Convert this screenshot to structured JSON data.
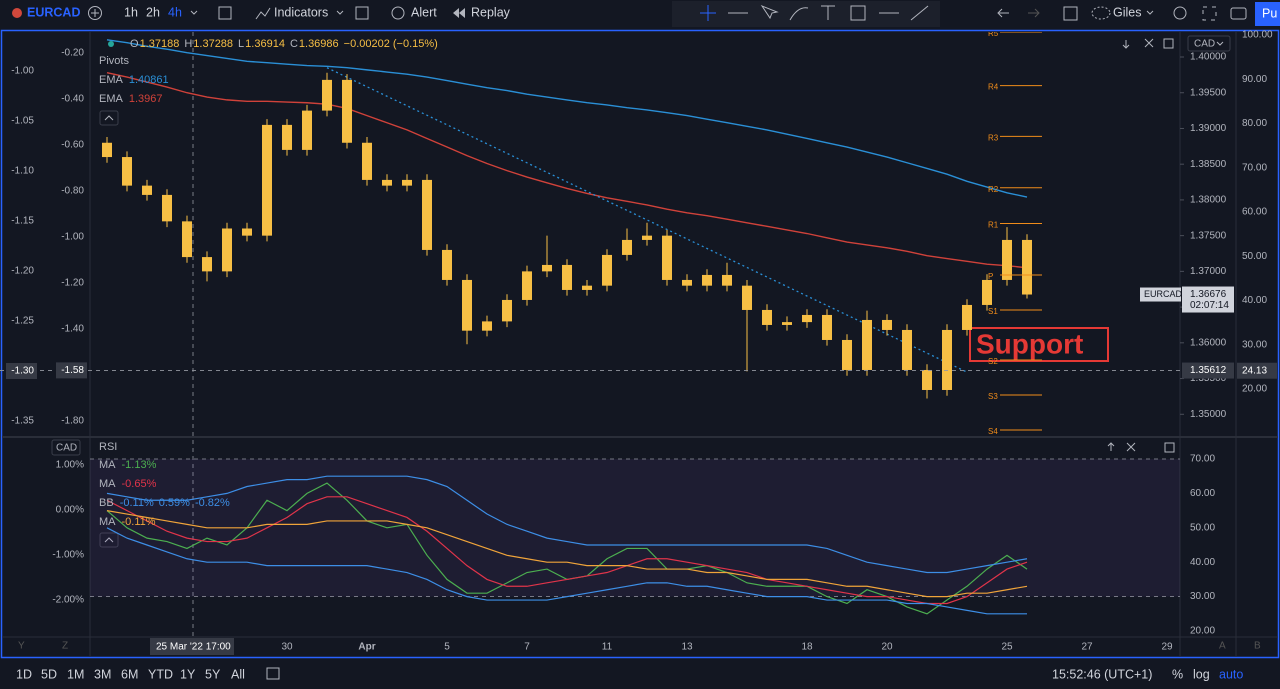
{
  "toolbar": {
    "symbol": "EURCAD",
    "intervals": [
      "1h",
      "2h",
      "4h"
    ],
    "active_interval": 2,
    "buttons": [
      "Indicators",
      "Alert",
      "Replay"
    ],
    "user": "Giles",
    "publish": "Pu"
  },
  "bottom_bar": {
    "ranges": [
      "1D",
      "5D",
      "1M",
      "3M",
      "6M",
      "YTD",
      "1Y",
      "5Y",
      "All"
    ],
    "time": "15:52:46 (UTC+1)",
    "options": [
      "%",
      "log",
      "auto"
    ],
    "corner_left": [
      "Y",
      "Z"
    ],
    "corner_right": [
      "A",
      "B"
    ]
  },
  "chart_data": [
    {
      "type": "candlestick",
      "currency": "CAD",
      "ohlc": [
        {
          "label": "O",
          "value": 1.37188
        },
        {
          "label": "H",
          "value": 1.37288
        },
        {
          "label": "L",
          "value": 1.36914
        },
        {
          "label": "C",
          "value": 1.36986
        }
      ],
      "change": "−0.00202 (−0.15%)",
      "indicator_title": "Pivots",
      "candle_color": "#f7bf45",
      "categories": [
        null,
        null,
        null,
        null,
        null,
        null,
        null,
        null,
        null,
        "30",
        null,
        null,
        null,
        "Apr",
        null,
        null,
        null,
        "5",
        null,
        null,
        null,
        "7",
        null,
        null,
        null,
        "11",
        null,
        null,
        null,
        "13",
        null,
        null,
        null,
        null,
        null,
        "18",
        null,
        null,
        null,
        "20",
        null,
        null,
        null,
        null,
        null,
        "25",
        null,
        null,
        null,
        "27",
        null,
        null,
        null,
        "29"
      ],
      "open": [
        1.388,
        1.386,
        1.382,
        1.3807,
        1.377,
        1.372,
        1.37,
        1.376,
        1.375,
        1.3905,
        1.387,
        1.3925,
        1.3968,
        1.388,
        1.3828,
        1.382,
        1.3828,
        1.373,
        1.3688,
        1.3617,
        1.363,
        1.366,
        1.37,
        1.3709,
        1.3674,
        1.368,
        1.3723,
        1.3744,
        1.375,
        1.3688,
        1.368,
        1.3695,
        1.368,
        1.3646,
        1.3625,
        1.3629,
        1.3639,
        1.3604,
        1.3562,
        1.3632,
        1.3618,
        1.3562,
        1.3534,
        1.3618,
        1.3653,
        1.3688,
        1.3744,
        null,
        null,
        null,
        null,
        null,
        null,
        null
      ],
      "high": [
        1.3888,
        1.3868,
        1.3828,
        1.3815,
        1.3778,
        1.3728,
        1.3768,
        1.3768,
        1.3913,
        1.3913,
        1.3933,
        1.3978,
        1.3976,
        1.3888,
        1.3836,
        1.3836,
        1.3836,
        1.3738,
        1.3696,
        1.3638,
        1.3668,
        1.3708,
        1.375,
        1.3717,
        1.3688,
        1.3731,
        1.376,
        1.3768,
        1.3758,
        1.3696,
        1.3703,
        1.3712,
        1.3688,
        1.3654,
        1.3637,
        1.3647,
        1.3647,
        1.3612,
        1.3645,
        1.364,
        1.3626,
        1.357,
        1.3626,
        1.3661,
        1.3696,
        1.3762,
        1.3752,
        null,
        null,
        null,
        null,
        null,
        null,
        null
      ],
      "low": [
        1.3852,
        1.3812,
        1.3799,
        1.3762,
        1.3712,
        1.3686,
        1.3692,
        1.3742,
        1.3742,
        1.3862,
        1.3862,
        1.3917,
        1.3872,
        1.382,
        1.3812,
        1.3812,
        1.3722,
        1.368,
        1.3598,
        1.3609,
        1.3622,
        1.3652,
        1.3692,
        1.3666,
        1.3666,
        1.3672,
        1.3715,
        1.3736,
        1.368,
        1.3672,
        1.3672,
        1.3672,
        1.356,
        1.3617,
        1.3617,
        1.3621,
        1.3596,
        1.3554,
        1.3554,
        1.361,
        1.3554,
        1.3522,
        1.3526,
        1.361,
        1.3645,
        1.368,
        1.3662,
        null,
        null,
        null,
        null,
        null,
        null,
        null
      ],
      "close": [
        1.386,
        1.382,
        1.3807,
        1.377,
        1.372,
        1.37,
        1.376,
        1.375,
        1.3905,
        1.387,
        1.3925,
        1.3968,
        1.388,
        1.3828,
        1.382,
        1.3828,
        1.373,
        1.3688,
        1.3617,
        1.363,
        1.366,
        1.37,
        1.3709,
        1.3674,
        1.368,
        1.3723,
        1.3744,
        1.375,
        1.3688,
        1.368,
        1.3695,
        1.368,
        1.3646,
        1.3625,
        1.3629,
        1.3639,
        1.3604,
        1.3562,
        1.3632,
        1.3618,
        1.3562,
        1.3534,
        1.3618,
        1.3653,
        1.3688,
        1.3744,
        1.36676,
        null,
        null,
        null,
        null,
        null,
        null,
        null
      ],
      "series": [
        {
          "name": "EMA",
          "color": "#2a8fd6",
          "legend_value": 1.40861,
          "values": [
            1.4024,
            1.402,
            1.4015,
            1.4011,
            1.4006,
            1.4002,
            1.3998,
            1.3994,
            1.3992,
            1.399,
            1.3988,
            1.3987,
            1.3985,
            1.3982,
            1.3979,
            1.3976,
            1.3972,
            1.3967,
            1.3962,
            1.3957,
            1.3953,
            1.3948,
            1.3944,
            1.394,
            1.3936,
            1.3933,
            1.3929,
            1.3926,
            1.3922,
            1.3918,
            1.3913,
            1.3908,
            1.3903,
            1.3898,
            1.3892,
            1.3886,
            1.388,
            1.3874,
            1.3867,
            1.386,
            1.3852,
            1.3844,
            1.3836,
            1.3826,
            1.3818,
            1.381,
            1.3804,
            null,
            null,
            null,
            null,
            null,
            null,
            null
          ]
        },
        {
          "name": "EMA",
          "color": "#d0423a",
          "legend_value": 1.3967,
          "values": [
            1.3978,
            1.3972,
            1.3965,
            1.3958,
            1.395,
            1.3944,
            1.394,
            1.3938,
            1.3938,
            1.3937,
            1.3936,
            1.3934,
            1.3928,
            1.3918,
            1.3908,
            1.3898,
            1.3886,
            1.3874,
            1.3862,
            1.3851,
            1.3841,
            1.3832,
            1.3824,
            1.3816,
            1.3809,
            1.3803,
            1.3798,
            1.3793,
            1.3787,
            1.3782,
            1.3778,
            1.3773,
            1.3768,
            1.3763,
            1.3758,
            1.3753,
            1.3747,
            1.3741,
            1.3737,
            1.3733,
            1.3728,
            1.3722,
            1.3718,
            1.3714,
            1.371,
            1.3708,
            1.3705,
            null,
            null,
            null,
            null,
            null,
            null,
            null
          ]
        }
      ],
      "pivot_color": "#f08c1a",
      "pivots": [
        {
          "name": "R5",
          "value": 1.4035
        },
        {
          "name": "R4",
          "value": 1.396
        },
        {
          "name": "R3",
          "value": 1.3889
        },
        {
          "name": "R2",
          "value": 1.3817
        },
        {
          "name": "R1",
          "value": 1.3767
        },
        {
          "name": "P",
          "value": 1.3695
        },
        {
          "name": "S1",
          "value": 1.3646
        },
        {
          "name": "S2",
          "value": 1.3576
        },
        {
          "name": "S3",
          "value": 1.3527
        },
        {
          "name": "S4",
          "value": 1.3478
        }
      ],
      "trend_line": {
        "start": {
          "category": 11,
          "price": 1.3985
        },
        "end": {
          "category": 43,
          "price": 1.3559
        }
      },
      "annotation": {
        "text": "Support",
        "color": "#e53935"
      },
      "ylim": [
        1.3471,
        1.4035
      ],
      "yticks": [
        {
          "value": 1.35,
          "label": "1.35000"
        },
        {
          "value": 1.355,
          "label": "1.35500"
        },
        {
          "value": 1.36,
          "label": "1.36000"
        },
        {
          "value": 1.365,
          "label": "1.36500"
        },
        {
          "value": 1.37,
          "label": "1.37000"
        },
        {
          "value": 1.375,
          "label": "1.37500"
        },
        {
          "value": 1.38,
          "label": "1.38000"
        },
        {
          "value": 1.385,
          "label": "1.38500"
        },
        {
          "value": 1.39,
          "label": "1.39000"
        },
        {
          "value": 1.395,
          "label": "1.39500"
        },
        {
          "value": 1.4,
          "label": "1.40000"
        }
      ],
      "y2lim": [
        9.6,
        100.68
      ],
      "y2ticks": [
        {
          "value": 100,
          "label": "100.00"
        },
        {
          "value": 90,
          "label": "90.00"
        },
        {
          "value": 80,
          "label": "80.00"
        },
        {
          "value": 70,
          "label": "70.00"
        },
        {
          "value": 60,
          "label": "60.00"
        },
        {
          "value": 50,
          "label": "50.00"
        },
        {
          "value": 40,
          "label": "40.00"
        },
        {
          "value": 30,
          "label": "30.00"
        },
        {
          "value": 20,
          "label": "20.00"
        }
      ],
      "left_scales": [
        {
          "lim": [
            -1.861,
            -0.1087
          ],
          "ticks": [
            {
              "value": -0.2,
              "label": "-0.20"
            },
            {
              "value": -0.4,
              "label": "-0.40"
            },
            {
              "value": -0.6,
              "label": "-0.60"
            },
            {
              "value": -0.8,
              "label": "-0.80"
            },
            {
              "value": -1,
              "label": "-1.00"
            },
            {
              "value": -1.2,
              "label": "-1.20"
            },
            {
              "value": -1.4,
              "label": "-1.40"
            },
            {
              "value": -1.8,
              "label": "-1.80"
            }
          ]
        },
        {
          "lim": [
            -1.364,
            -0.961
          ],
          "ticks": [
            {
              "value": -1,
              "label": "-1.00"
            },
            {
              "value": -1.05,
              "label": "-1.05"
            },
            {
              "value": -1.1,
              "label": "-1.10"
            },
            {
              "value": -1.15,
              "label": "-1.15"
            },
            {
              "value": -1.2,
              "label": "-1.20"
            },
            {
              "value": -1.25,
              "label": "-1.25"
            },
            {
              "value": -1.35,
              "label": "-1.35"
            }
          ]
        }
      ],
      "crosshair": {
        "price": {
          "value": 1.35612,
          "label": "1.35612"
        },
        "left_values": [
          {
            "value": -1.58,
            "label": "-1.58"
          },
          {
            "value": -1.3,
            "label": "-1.30"
          }
        ],
        "y2_value": {
          "value": 24.13,
          "label": "24.13"
        },
        "time_label": "25 Mar '22 17:00"
      },
      "last_price": {
        "symbol": "EURCAD",
        "value": 1.36676,
        "countdown": "02:07:14"
      }
    },
    {
      "type": "line",
      "title": "RSI",
      "currency": "CAD",
      "series": [
        {
          "name": "MA",
          "color": "#4caf50",
          "legend_value": {
            "value": -1.13,
            "label": "-1.13%"
          },
          "values": [
            55,
            50,
            47,
            46,
            44,
            47,
            45,
            50,
            58,
            55,
            60,
            63,
            58,
            52,
            50,
            51,
            42,
            35,
            31,
            31,
            34,
            37,
            38,
            35,
            36,
            41,
            44,
            44,
            38,
            38,
            39,
            37,
            34,
            33,
            33,
            33,
            30,
            28,
            32,
            30,
            27,
            25,
            29,
            33,
            38,
            42,
            38,
            null,
            null,
            null,
            null,
            null,
            null,
            null
          ]
        },
        {
          "name": "MA",
          "color": "#e0344a",
          "legend_value": {
            "value": -0.65,
            "label": "-0.65%"
          },
          "values": [
            58,
            55,
            52,
            49,
            47,
            46,
            46,
            47,
            50,
            53,
            57,
            59,
            59,
            57,
            55,
            53,
            49,
            44,
            39,
            35,
            33,
            33,
            34,
            35,
            36,
            37,
            39,
            41,
            41,
            40,
            39,
            38,
            37,
            35,
            34,
            33,
            32,
            31,
            30,
            30,
            29,
            28,
            28,
            30,
            34,
            38,
            40,
            null,
            null,
            null,
            null,
            null,
            null,
            null
          ]
        },
        {
          "name": "BB",
          "color": "#3d8ee6",
          "legend_value": [
            {
              "value": -0.11,
              "label": "-0.11%"
            },
            {
              "value": 0.59,
              "label": "0.59%"
            },
            {
              "value": -0.82,
              "label": "-0.82%"
            }
          ],
          "upper": [
            60,
            59,
            58,
            58,
            58,
            59,
            60,
            62,
            63,
            64,
            64,
            65,
            65,
            65,
            65,
            65,
            64,
            62,
            58,
            54,
            51,
            49,
            47,
            46,
            45,
            45,
            45,
            45,
            45,
            45,
            45,
            45,
            45,
            45,
            45,
            45,
            44,
            42,
            40,
            39,
            38,
            37,
            37,
            38,
            39,
            40,
            41,
            null,
            null,
            null,
            null,
            null,
            null,
            null
          ],
          "lower": [
            50,
            47,
            45,
            43,
            41,
            40,
            40,
            40,
            39,
            39,
            39,
            39,
            39,
            39,
            38,
            37,
            35,
            32,
            30,
            29,
            29,
            29,
            29,
            30,
            31,
            32,
            33,
            34,
            34,
            33,
            33,
            32,
            31,
            30,
            30,
            30,
            29,
            29,
            29,
            29,
            28,
            28,
            27,
            26,
            25,
            25,
            25,
            null,
            null,
            null,
            null,
            null,
            null,
            null
          ]
        },
        {
          "name": "MA",
          "color": "#f0a43a",
          "legend_value": {
            "value": -0.11,
            "label": "-0.11%"
          },
          "values": [
            55,
            54,
            53,
            52,
            51,
            50,
            50,
            50,
            51,
            51,
            51,
            52,
            52,
            52,
            52,
            51,
            50,
            48,
            46,
            44,
            42,
            41,
            40,
            40,
            39,
            39,
            39,
            38,
            38,
            38,
            37,
            37,
            36,
            35,
            35,
            35,
            34,
            33,
            33,
            32,
            31,
            30,
            30,
            31,
            31,
            32,
            33,
            null,
            null,
            null,
            null,
            null,
            null,
            null
          ]
        }
      ],
      "bands": {
        "upper": 70,
        "lower": 30,
        "color": "#7e57c2"
      },
      "ylim": [
        18.55,
        75.52
      ],
      "yticks": [
        {
          "value": 70,
          "label": "70.00"
        },
        {
          "value": 60,
          "label": "60.00"
        },
        {
          "value": 50,
          "label": "50.00"
        },
        {
          "value": 40,
          "label": "40.00"
        },
        {
          "value": 30,
          "label": "30.00"
        },
        {
          "value": 20,
          "label": "20.00"
        }
      ],
      "y2lim": [
        -2.8,
        1.556
      ],
      "y2ticks": [
        {
          "value": 1,
          "label": "1.00%"
        },
        {
          "value": 0,
          "label": "0.00%"
        },
        {
          "value": -1,
          "label": "-1.00%"
        },
        {
          "value": -2,
          "label": "-2.00%"
        }
      ]
    }
  ]
}
